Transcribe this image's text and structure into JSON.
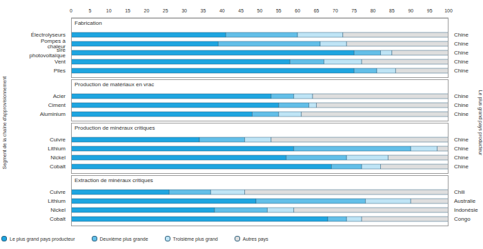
{
  "chart_data": [
    {
      "type": "bar",
      "orientation": "horizontal",
      "stacked": true,
      "title": "Fabrication",
      "y_label": "Segment de la chaîne d'approvisionnement",
      "y2_label": "Le plus grand pays producteur",
      "legend": "bottom",
      "categories": [
        "Électrolyseurs",
        "Pompes à chaleur",
        "sire photovoltaïque",
        "Vent",
        "Piles"
      ],
      "annotations": [
        "Chine",
        "Chine",
        "Chine",
        "Chine",
        "Chine"
      ],
      "xlim": [
        0,
        100
      ],
      "xticks": [
        0,
        5,
        10,
        15,
        20,
        25,
        30,
        35,
        40,
        45,
        50,
        55,
        60,
        65,
        70,
        75,
        80,
        85,
        90,
        95,
        100
      ],
      "series": [
        {
          "name": "Le plus grand pays producteur",
          "color": "#1ea5e0",
          "values": [
            41,
            39,
            75,
            58,
            75
          ]
        },
        {
          "name": "Deuxième plus grande",
          "color": "#63bfe8",
          "values": [
            19,
            27,
            7,
            9,
            6
          ]
        },
        {
          "name": "Troisième plus grand",
          "color": "#bfe4f5",
          "values": [
            12,
            7,
            3,
            10,
            5
          ]
        },
        {
          "name": "Autres pays",
          "color": "#dedede",
          "values": [
            28,
            27,
            15,
            23,
            14
          ]
        }
      ]
    },
    {
      "type": "bar",
      "orientation": "horizontal",
      "stacked": true,
      "title": "Production de matériaux en vrac",
      "categories": [
        "Acier",
        "Ciment",
        "Aluminium"
      ],
      "annotations": [
        "Chine",
        "Chine",
        "Chine"
      ],
      "xlim": [
        0,
        100
      ],
      "series": [
        {
          "name": "Le plus grand pays producteur",
          "color": "#1ea5e0",
          "values": [
            53,
            55,
            48
          ]
        },
        {
          "name": "Deuxième plus grande",
          "color": "#63bfe8",
          "values": [
            6,
            8,
            7
          ]
        },
        {
          "name": "Troisième plus grand",
          "color": "#bfe4f5",
          "values": [
            5,
            2,
            6
          ]
        },
        {
          "name": "Autres pays",
          "color": "#dedede",
          "values": [
            36,
            35,
            39
          ]
        }
      ]
    },
    {
      "type": "bar",
      "orientation": "horizontal",
      "stacked": true,
      "title": "Production de minéraux critiques",
      "categories": [
        "Cuivre",
        "Lithium",
        "Nickel",
        "Cobalt"
      ],
      "annotations": [
        "Chine",
        "Chine",
        "Chine",
        "Chine"
      ],
      "xlim": [
        0,
        100
      ],
      "series": [
        {
          "name": "Le plus grand pays producteur",
          "color": "#1ea5e0",
          "values": [
            34,
            59,
            57,
            69
          ]
        },
        {
          "name": "Deuxième plus grande",
          "color": "#63bfe8",
          "values": [
            12,
            31,
            16,
            8
          ]
        },
        {
          "name": "Troisième plus grand",
          "color": "#bfe4f5",
          "values": [
            7,
            7,
            11,
            5
          ]
        },
        {
          "name": "Autres pays",
          "color": "#dedede",
          "values": [
            47,
            3,
            16,
            18
          ]
        }
      ]
    },
    {
      "type": "bar",
      "orientation": "horizontal",
      "stacked": true,
      "title": "Extraction de minéraux critiques",
      "categories": [
        "Cuivre",
        "Lithium",
        "Nickel",
        "Cobalt"
      ],
      "annotations": [
        "Chili",
        "Australie",
        "Indonésie",
        "Congo"
      ],
      "xlim": [
        0,
        100
      ],
      "series": [
        {
          "name": "Le plus grand pays producteur",
          "color": "#1ea5e0",
          "values": [
            26,
            49,
            38,
            68
          ]
        },
        {
          "name": "Deuxième plus grande",
          "color": "#63bfe8",
          "values": [
            11,
            29,
            14,
            5
          ]
        },
        {
          "name": "Troisième plus grand",
          "color": "#bfe4f5",
          "values": [
            9,
            12,
            7,
            4
          ]
        },
        {
          "name": "Autres pays",
          "color": "#dedede",
          "values": [
            54,
            10,
            41,
            23
          ]
        }
      ]
    }
  ]
}
